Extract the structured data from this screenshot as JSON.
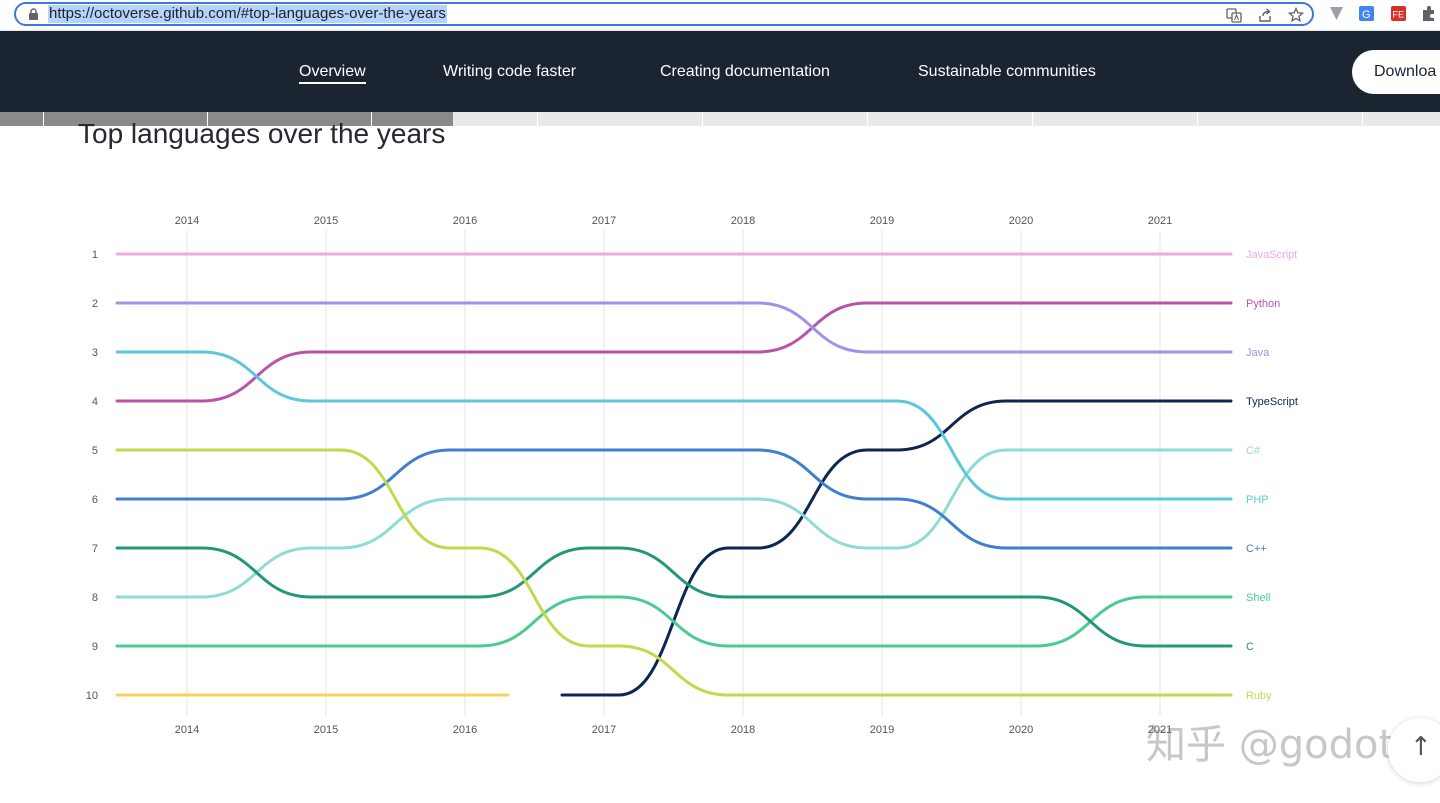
{
  "browser": {
    "url": "https://octoverse.github.com/#top-languages-over-the-years",
    "icons": [
      "lock-icon",
      "translate-icon",
      "share-icon",
      "star-icon",
      "extension-icons"
    ]
  },
  "nav": {
    "items": [
      {
        "label": "Overview",
        "active": true
      },
      {
        "label": "Writing code faster",
        "active": false
      },
      {
        "label": "Creating documentation",
        "active": false
      },
      {
        "label": "Sustainable communities",
        "active": false
      }
    ],
    "download_label": "Downloa"
  },
  "page": {
    "title": "Top languages over the years"
  },
  "watermark": "知乎 @godot",
  "back_to_top": "↑",
  "chart_data": {
    "type": "bump",
    "title": "Top languages over the years",
    "x": [
      2014,
      2015,
      2016,
      2017,
      2018,
      2019,
      2020,
      2021
    ],
    "x_tick_labels": [
      "2014",
      "2015",
      "2016",
      "2017",
      "2018",
      "2019",
      "2020",
      "2021"
    ],
    "y_tick_labels": [
      "1",
      "2",
      "3",
      "4",
      "5",
      "6",
      "7",
      "8",
      "9",
      "10"
    ],
    "ylim": [
      1,
      10
    ],
    "y_inverted": true,
    "grid": "vertical",
    "legend": "right end labels",
    "series": [
      {
        "name": "JavaScript",
        "color": "#f0a8e0",
        "ranks": [
          1,
          1,
          1,
          1,
          1,
          1,
          1,
          1
        ]
      },
      {
        "name": "Python",
        "color": "#b754a8",
        "ranks": [
          4,
          3,
          3,
          3,
          3,
          2,
          2,
          2
        ]
      },
      {
        "name": "Java",
        "color": "#a391e3",
        "ranks": [
          2,
          2,
          2,
          2,
          2,
          3,
          3,
          3
        ]
      },
      {
        "name": "TypeScript",
        "color": "#0e2751",
        "ranks": [
          null,
          null,
          null,
          10,
          7,
          5,
          4,
          4
        ]
      },
      {
        "name": "C#",
        "color": "#8edcd3",
        "ranks": [
          8,
          7,
          6,
          6,
          6,
          7,
          5,
          5
        ]
      },
      {
        "name": "PHP",
        "color": "#5cc7dc",
        "ranks": [
          3,
          4,
          4,
          4,
          4,
          4,
          6,
          6
        ]
      },
      {
        "name": "C++",
        "color": "#3f7fcd",
        "ranks": [
          6,
          6,
          5,
          5,
          5,
          6,
          7,
          7
        ]
      },
      {
        "name": "Shell",
        "color": "#4ccb8f",
        "ranks": [
          9,
          9,
          9,
          8,
          9,
          9,
          9,
          8
        ]
      },
      {
        "name": "C",
        "color": "#22977a",
        "ranks": [
          7,
          8,
          8,
          7,
          8,
          8,
          8,
          9
        ]
      },
      {
        "name": "Ruby",
        "color": "#c1d94d",
        "ranks": [
          5,
          5,
          7,
          9,
          10,
          10,
          10,
          10
        ]
      },
      {
        "name": "",
        "color": "#f6d45a",
        "ranks": [
          10,
          10,
          10,
          null,
          null,
          null,
          null,
          null
        ]
      }
    ]
  }
}
